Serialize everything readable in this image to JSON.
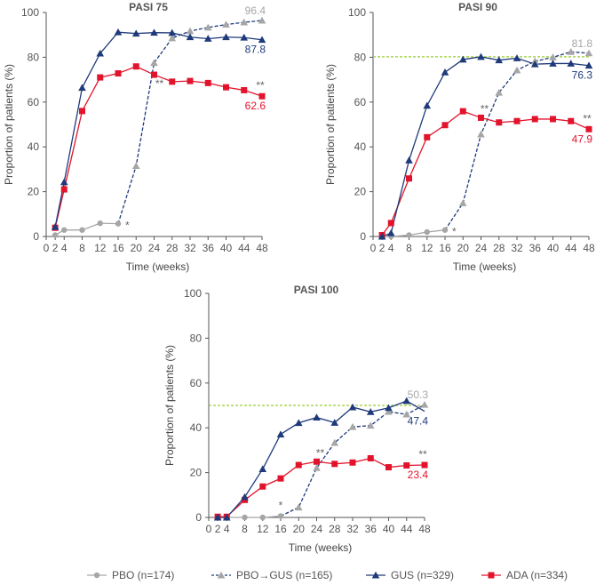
{
  "chart_data": [
    {
      "type": "line",
      "title": "PASI 75",
      "xlabel": "Time (weeks)",
      "ylabel": "Proportion of patients (%)",
      "xticks": [
        0,
        2,
        4,
        8,
        12,
        16,
        20,
        24,
        28,
        32,
        36,
        40,
        44,
        48
      ],
      "yticks": [
        0,
        20,
        40,
        60,
        80,
        100
      ],
      "xlim": [
        0,
        48
      ],
      "ylim": [
        0,
        100
      ],
      "reference_line": null,
      "series": [
        {
          "name": "PBO (n=174)",
          "key": "pbo",
          "x": [
            2,
            4,
            8,
            12,
            16
          ],
          "y": [
            0.6,
            2.9,
            2.9,
            5.9,
            5.7
          ]
        },
        {
          "name": "PBO→GUS (n=165)",
          "key": "pbogus",
          "x": [
            16,
            20,
            24,
            28,
            32,
            36,
            40,
            44,
            48
          ],
          "y": [
            5.7,
            31.5,
            77.5,
            88.5,
            91.7,
            93.3,
            94.6,
            95.6,
            96.4
          ]
        },
        {
          "name": "GUS (n=329)",
          "key": "gus",
          "x": [
            2,
            4,
            8,
            12,
            16,
            20,
            24,
            28,
            32,
            36,
            40,
            44,
            48
          ],
          "y": [
            4.3,
            24.3,
            66.4,
            81.7,
            91.2,
            90.6,
            91.0,
            90.9,
            89.0,
            88.3,
            89.0,
            88.8,
            87.8
          ]
        },
        {
          "name": "ADA (n=334)",
          "key": "ada",
          "x": [
            2,
            4,
            8,
            12,
            16,
            20,
            24,
            28,
            32,
            36,
            40,
            44,
            48
          ],
          "y": [
            3.9,
            21.0,
            56.0,
            71.0,
            72.8,
            75.9,
            72.2,
            69.1,
            69.4,
            68.5,
            66.6,
            65.3,
            62.6
          ]
        }
      ],
      "annotations": [
        {
          "text": "96.4",
          "series": "pbogus"
        },
        {
          "text": "87.8",
          "series": "gus"
        },
        {
          "text": "62.6",
          "series": "ada"
        },
        {
          "text": "*",
          "at_week": 16
        },
        {
          "text": "**",
          "at_week": 24
        },
        {
          "text": "**",
          "at_week": 48
        }
      ]
    },
    {
      "type": "line",
      "title": "PASI 90",
      "xlabel": "Time (weeks)",
      "ylabel": "Proportion of patients (%)",
      "xticks": [
        0,
        2,
        4,
        8,
        12,
        16,
        20,
        24,
        28,
        32,
        36,
        40,
        44,
        48
      ],
      "yticks": [
        0,
        20,
        40,
        60,
        80,
        100
      ],
      "xlim": [
        0,
        48
      ],
      "ylim": [
        0,
        100
      ],
      "reference_line": 80.2,
      "series": [
        {
          "name": "PBO (n=174)",
          "key": "pbo",
          "x": [
            2,
            4,
            8,
            12,
            16
          ],
          "y": [
            0.0,
            0.0,
            0.6,
            2.0,
            2.9
          ]
        },
        {
          "name": "PBO→GUS (n=165)",
          "key": "pbogus",
          "x": [
            16,
            20,
            24,
            28,
            32,
            36,
            40,
            44,
            48
          ],
          "y": [
            2.9,
            14.9,
            45.6,
            64.2,
            74.2,
            78.2,
            80.0,
            82.4,
            81.8
          ]
        },
        {
          "name": "GUS (n=329)",
          "key": "gus",
          "x": [
            2,
            4,
            8,
            12,
            16,
            20,
            24,
            28,
            32,
            36,
            40,
            44,
            48
          ],
          "y": [
            0.0,
            1.5,
            34.0,
            58.4,
            73.3,
            79.0,
            80.2,
            78.7,
            79.6,
            76.9,
            77.2,
            77.2,
            76.3
          ]
        },
        {
          "name": "ADA (n=334)",
          "key": "ada",
          "x": [
            2,
            4,
            8,
            12,
            16,
            20,
            24,
            28,
            32,
            36,
            40,
            44,
            48
          ],
          "y": [
            0.6,
            6.0,
            25.9,
            44.3,
            49.7,
            55.9,
            53.0,
            50.9,
            51.5,
            52.4,
            52.4,
            51.5,
            47.9
          ]
        }
      ],
      "annotations": [
        {
          "text": "81.8",
          "series": "pbogus"
        },
        {
          "text": "76.3",
          "series": "gus"
        },
        {
          "text": "47.9",
          "series": "ada"
        },
        {
          "text": "*",
          "at_week": 16
        },
        {
          "text": "**",
          "at_week": 24
        },
        {
          "text": "**",
          "at_week": 48
        }
      ]
    },
    {
      "type": "line",
      "title": "PASI 100",
      "xlabel": "Time (weeks)",
      "ylabel": "Proportion of patients (%)",
      "xticks": [
        0,
        2,
        4,
        8,
        12,
        16,
        20,
        24,
        28,
        32,
        36,
        40,
        44,
        48
      ],
      "yticks": [
        0,
        20,
        40,
        60,
        80,
        100
      ],
      "xlim": [
        0,
        48
      ],
      "ylim": [
        0,
        100
      ],
      "reference_line": 50.0,
      "series": [
        {
          "name": "PBO (n=174)",
          "key": "pbo",
          "x": [
            2,
            4,
            8,
            12,
            16
          ],
          "y": [
            0.0,
            0.0,
            0.0,
            0.0,
            0.6
          ]
        },
        {
          "name": "PBO→GUS (n=165)",
          "key": "pbogus",
          "x": [
            16,
            20,
            24,
            28,
            32,
            36,
            40,
            44,
            48
          ],
          "y": [
            0.6,
            4.5,
            22.1,
            33.3,
            40.4,
            41.0,
            47.2,
            46.0,
            50.3
          ]
        },
        {
          "name": "GUS (n=329)",
          "key": "gus",
          "x": [
            2,
            4,
            8,
            12,
            16,
            20,
            24,
            28,
            32,
            36,
            40,
            44,
            48
          ],
          "y": [
            0.0,
            0.0,
            9.1,
            21.6,
            37.1,
            42.2,
            44.6,
            42.3,
            49.2,
            47.1,
            48.9,
            52.0,
            47.4
          ]
        },
        {
          "name": "ADA (n=334)",
          "key": "ada",
          "x": [
            2,
            4,
            8,
            12,
            16,
            20,
            24,
            28,
            32,
            36,
            40,
            44,
            48
          ],
          "y": [
            0.3,
            0.3,
            7.8,
            13.8,
            17.4,
            23.4,
            24.9,
            23.9,
            24.5,
            26.4,
            22.4,
            23.2,
            23.4
          ]
        }
      ],
      "annotations": [
        {
          "text": "50.3",
          "series": "pbogus"
        },
        {
          "text": "47.4",
          "series": "gus"
        },
        {
          "text": "23.4",
          "series": "ada"
        },
        {
          "text": "*",
          "at_week": 16
        },
        {
          "text": "**",
          "at_week": 24
        },
        {
          "text": "**",
          "at_week": 48
        }
      ]
    }
  ],
  "legend": {
    "position": "bottom",
    "items": [
      {
        "key": "pbo",
        "label": "PBO (n=174)"
      },
      {
        "key": "pbogus",
        "label": "PBO→GUS (n=165)"
      },
      {
        "key": "gus",
        "label": "GUS (n=329)"
      },
      {
        "key": "ada",
        "label": "ADA (n=334)"
      }
    ]
  },
  "colors": {
    "pbo": "#a6a6a6",
    "pbogus_marker": "#a6a6a6",
    "pbogus_line": "#1f3a7a",
    "gus": "#1f3a7a",
    "ada": "#e2142c",
    "reference": "#9acd32",
    "axis": "#555555",
    "star": "#666666"
  }
}
